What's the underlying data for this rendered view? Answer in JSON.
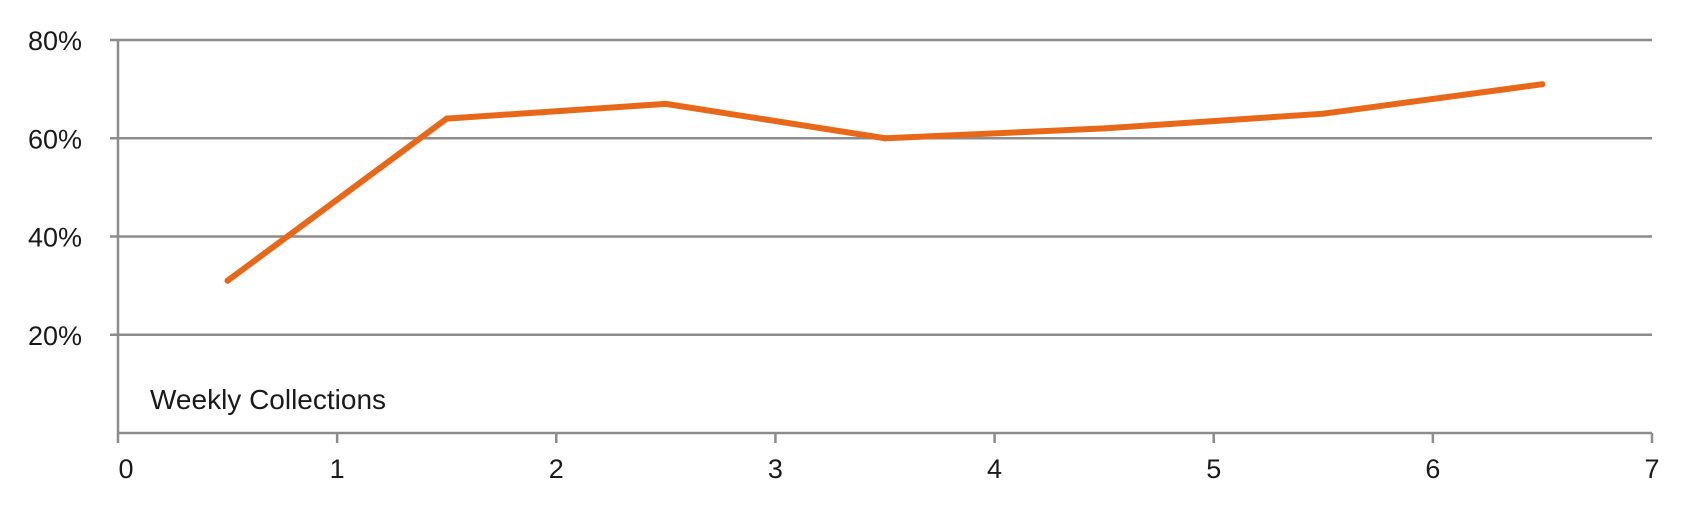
{
  "chart_data": {
    "type": "line",
    "title": "",
    "xlabel": "",
    "ylabel": "",
    "annotation": "Weekly Collections",
    "xlim": [
      0,
      7
    ],
    "ylim": [
      0,
      80
    ],
    "x_ticks": [
      0,
      1,
      2,
      3,
      4,
      5,
      6,
      7
    ],
    "x_tick_labels": [
      "0",
      "1",
      "2",
      "3",
      "4",
      "5",
      "6",
      "7"
    ],
    "y_ticks": [
      20,
      40,
      60,
      80
    ],
    "y_tick_labels": [
      "20%",
      "40%",
      "60%",
      "80%"
    ],
    "grid": true,
    "legend": "none",
    "series": [
      {
        "name": "Weekly Collections",
        "color": "#e8681a",
        "x": [
          0.5,
          1.5,
          2.5,
          3.5,
          4.5,
          5.5,
          6.5
        ],
        "values": [
          31,
          64,
          67,
          60,
          62,
          65,
          71
        ]
      }
    ]
  }
}
